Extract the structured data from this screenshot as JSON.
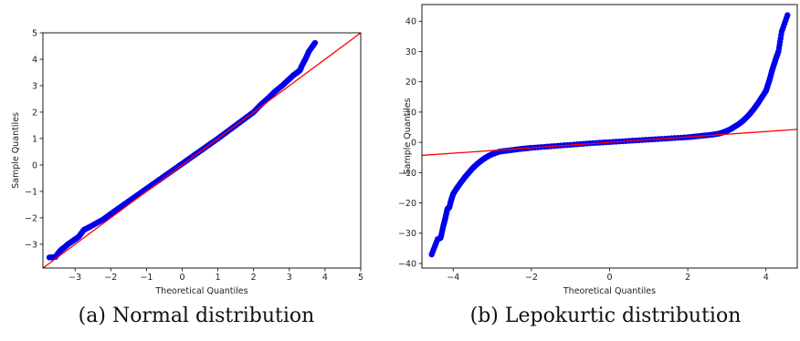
{
  "chart_data": [
    {
      "type": "scatter",
      "caption": "(a) Normal distribution",
      "xlabel": "Theoretical Quantiles",
      "ylabel": "Sample Quantiles",
      "xlim": [
        -3.9,
        5.0
      ],
      "ylim": [
        -3.9,
        5.0
      ],
      "xticks": [
        -3,
        -2,
        -1,
        0,
        1,
        2,
        3,
        4,
        5
      ],
      "yticks": [
        -3,
        -2,
        -1,
        0,
        1,
        2,
        3,
        4,
        5
      ],
      "reference_line": {
        "color": "#ff0000",
        "points": [
          [
            -3.9,
            -3.9
          ],
          [
            5.0,
            5.0
          ]
        ]
      },
      "marker_color": "#0000ee",
      "series": [
        {
          "x": [
            -3.72,
            -3.55,
            -3.45,
            -3.38,
            -3.3,
            -3.2,
            -3.05,
            -2.9,
            -2.75,
            -2.6,
            -2.4,
            -2.2,
            -2.0,
            -1.8,
            -1.6,
            -1.4,
            -1.2,
            -1.0,
            -0.8,
            -0.6,
            -0.4,
            -0.2,
            0.0,
            0.2,
            0.4,
            0.6,
            0.8,
            1.0,
            1.2,
            1.4,
            1.6,
            1.8,
            2.0,
            2.2,
            2.4,
            2.6,
            2.8,
            3.0,
            3.1,
            3.2,
            3.3,
            3.35,
            3.45,
            3.55,
            3.72
          ],
          "y": [
            -3.5,
            -3.48,
            -3.3,
            -3.2,
            -3.12,
            -3.0,
            -2.86,
            -2.72,
            -2.45,
            -2.35,
            -2.2,
            -2.05,
            -1.85,
            -1.66,
            -1.47,
            -1.28,
            -1.09,
            -0.9,
            -0.71,
            -0.52,
            -0.33,
            -0.14,
            0.05,
            0.24,
            0.43,
            0.62,
            0.81,
            1.0,
            1.2,
            1.4,
            1.6,
            1.8,
            2.0,
            2.28,
            2.52,
            2.78,
            3.0,
            3.25,
            3.38,
            3.48,
            3.58,
            3.75,
            4.0,
            4.3,
            4.62
          ]
        }
      ]
    },
    {
      "type": "scatter",
      "caption": "(b) Lepokurtic distribution",
      "xlabel": "Theoretical Quantiles",
      "ylabel": "Sample Quantiles",
      "xlim": [
        -4.8,
        4.8
      ],
      "ylim": [
        -41.5,
        45.5
      ],
      "xticks": [
        -4,
        -2,
        0,
        2,
        4
      ],
      "yticks": [
        -40,
        -30,
        -20,
        -10,
        0,
        10,
        20,
        30,
        40
      ],
      "reference_line": {
        "color": "#ff0000",
        "points": [
          [
            -4.8,
            -4.3
          ],
          [
            4.8,
            4.3
          ]
        ]
      },
      "marker_color": "#0000ee",
      "series": [
        {
          "x": [
            -4.55,
            -4.4,
            -4.32,
            -4.25,
            -4.2,
            -4.15,
            -4.1,
            -4.05,
            -4.0,
            -3.9,
            -3.8,
            -3.7,
            -3.6,
            -3.5,
            -3.4,
            -3.3,
            -3.2,
            -3.1,
            -3.0,
            -2.9,
            -2.8,
            -2.6,
            -2.3,
            -2.0,
            -1.5,
            -1.0,
            -0.5,
            0.0,
            0.5,
            1.0,
            1.5,
            2.0,
            2.3,
            2.6,
            2.8,
            2.9,
            3.0,
            3.1,
            3.2,
            3.3,
            3.4,
            3.5,
            3.6,
            3.7,
            3.8,
            3.9,
            4.0,
            4.05,
            4.1,
            4.15,
            4.2,
            4.25,
            4.32,
            4.4,
            4.55
          ],
          "y": [
            -37.0,
            -32.0,
            -31.5,
            -27.5,
            -25.0,
            -22.0,
            -21.5,
            -19.0,
            -17.0,
            -15.0,
            -13.2,
            -11.5,
            -10.0,
            -8.5,
            -7.3,
            -6.2,
            -5.3,
            -4.5,
            -3.9,
            -3.4,
            -3.0,
            -2.7,
            -2.2,
            -1.8,
            -1.3,
            -0.8,
            -0.3,
            0.1,
            0.5,
            0.9,
            1.3,
            1.7,
            2.1,
            2.5,
            2.9,
            3.3,
            3.8,
            4.4,
            5.2,
            6.0,
            7.0,
            8.2,
            9.6,
            11.2,
            13.0,
            15.0,
            17.0,
            19.0,
            21.0,
            23.5,
            25.5,
            27.5,
            30.0,
            36.5,
            42.0
          ]
        }
      ]
    }
  ]
}
